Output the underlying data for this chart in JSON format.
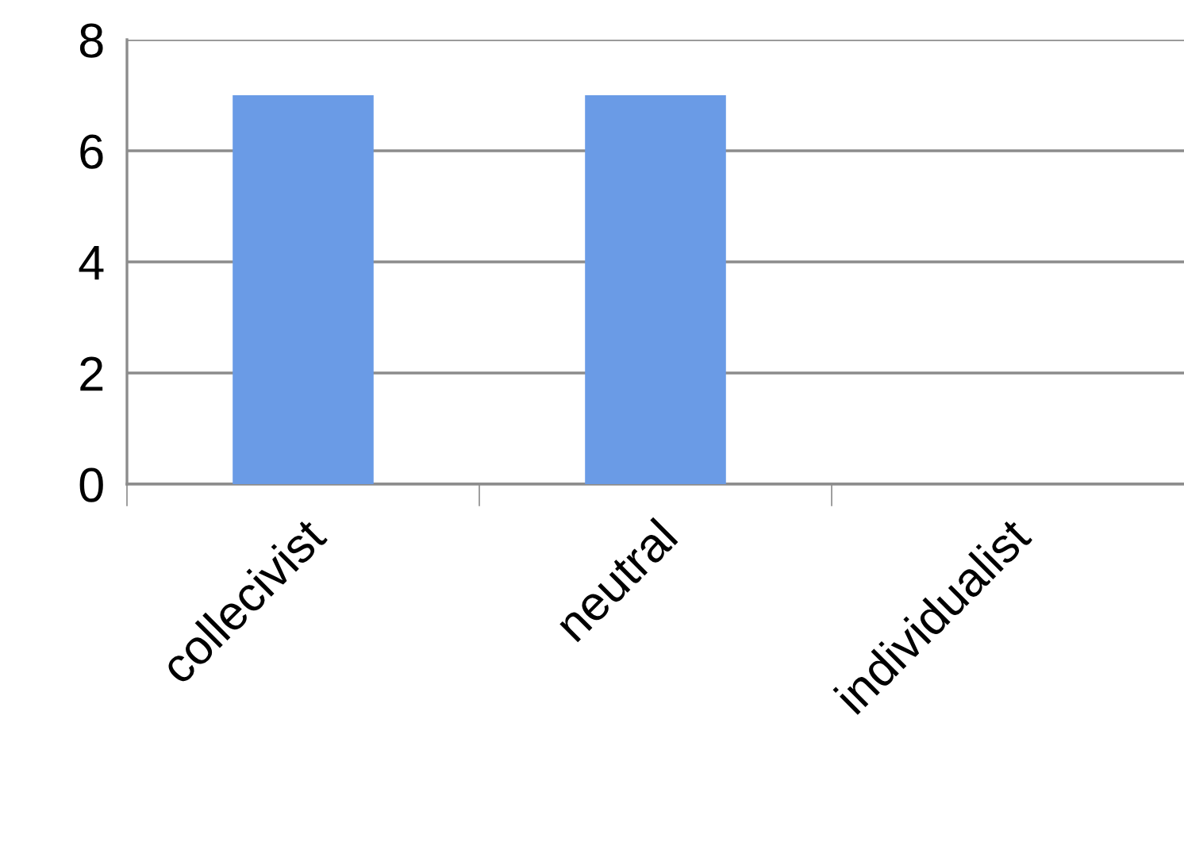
{
  "chart_data": {
    "type": "bar",
    "categories": [
      "collecivist",
      "neutral",
      "individualist"
    ],
    "values": [
      7,
      7,
      0
    ],
    "color": "#6a9be6",
    "ylim": [
      0,
      8
    ],
    "yticks": [
      0,
      2,
      4,
      6,
      8
    ],
    "grid": "y"
  }
}
